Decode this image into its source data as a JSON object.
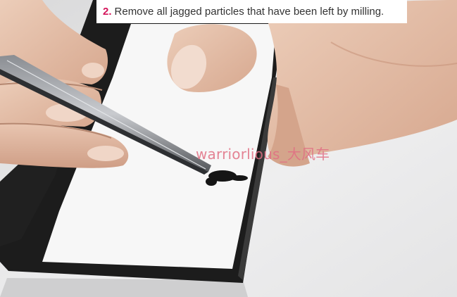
{
  "caption": {
    "step_number": "2.",
    "text": "Remove all jagged particles that have been left by milling."
  },
  "watermark": {
    "text": "warriorlious_大风车"
  },
  "colors": {
    "step_number": "#d4145a",
    "caption_text": "#333333",
    "watermark": "#e06e82",
    "board": "#f7f7f7",
    "edge": "#1c1c1c",
    "skin": "#e2b8a0"
  }
}
